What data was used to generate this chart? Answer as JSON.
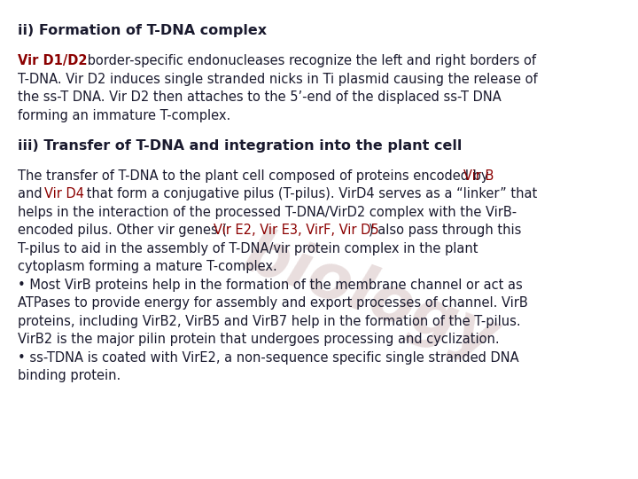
{
  "bg_color": "#ffffff",
  "title1": "ii) Formation of T-DNA complex",
  "title2": "iii) Transfer of T-DNA and integration into the plant cell",
  "para1_segments": [
    [
      [
        "Vir D1/D2",
        "#8B0000",
        true
      ],
      [
        " border-specific endonucleases recognize the left and right borders of",
        "#1a1a2e",
        false
      ]
    ],
    [
      [
        "T-DNA. Vir D2 induces single stranded nicks in Ti plasmid causing the release of",
        "#1a1a2e",
        false
      ]
    ],
    [
      [
        "the ss-T DNA. Vir D2 then attaches to the 5'-end of the displaced ss-T DNA",
        "#1a1a2e",
        false
      ]
    ],
    [
      [
        "forming an immature T-complex.",
        "#1a1a2e",
        false
      ]
    ]
  ],
  "para2_line1_segments": [
    [
      [
        "The transfer of T-DNA to the plant cell composed of proteins encoded by ",
        "#1a1a2e",
        false
      ],
      [
        "Vir B",
        "#8B0000",
        false
      ]
    ]
  ],
  "para2_line2_segments": [
    [
      [
        "and ",
        "#1a1a2e",
        false
      ],
      [
        "Vir D4",
        "#8B0000",
        false
      ],
      [
        " that form a conjugative pilus (T-pilus). VirD4 serves as a “linker” that",
        "#1a1a2e",
        false
      ]
    ]
  ],
  "para2_rest": [
    "helps in the interaction of the processed T-DNA/VirD2 complex with the VirB-",
    "encoded pilus. Other vir genes "
  ],
  "para2_vir_genes": "(Vir E2, Vir E3, VirF, Vir D5)",
  "para2_after_vir": " also pass through this",
  "para2_lines_after": [
    "T-pilus to aid in the assembly of T-DNA/vir protein complex in the plant",
    "cytoplasm forming a mature T-complex.",
    "• Most VirB proteins help in the formation of the membrane channel or act as",
    "ATPases to provide energy for assembly and export processes of channel. VirB",
    "proteins, including VirB2, VirB5 and VirB7 help in the formation of the T-pilus.",
    "VirB2 is the major pilin protein that undergoes processing and cyclization.",
    "• ss-TDNA is coated with VirE2, a non-sequence specific single stranded DNA",
    "binding protein."
  ],
  "watermark": "biology",
  "watermark_color": "#c0a0a0",
  "dark_color": "#1a1a2e",
  "red_color": "#8B0000",
  "font_size_title": 11.5,
  "font_size_body": 10.5
}
